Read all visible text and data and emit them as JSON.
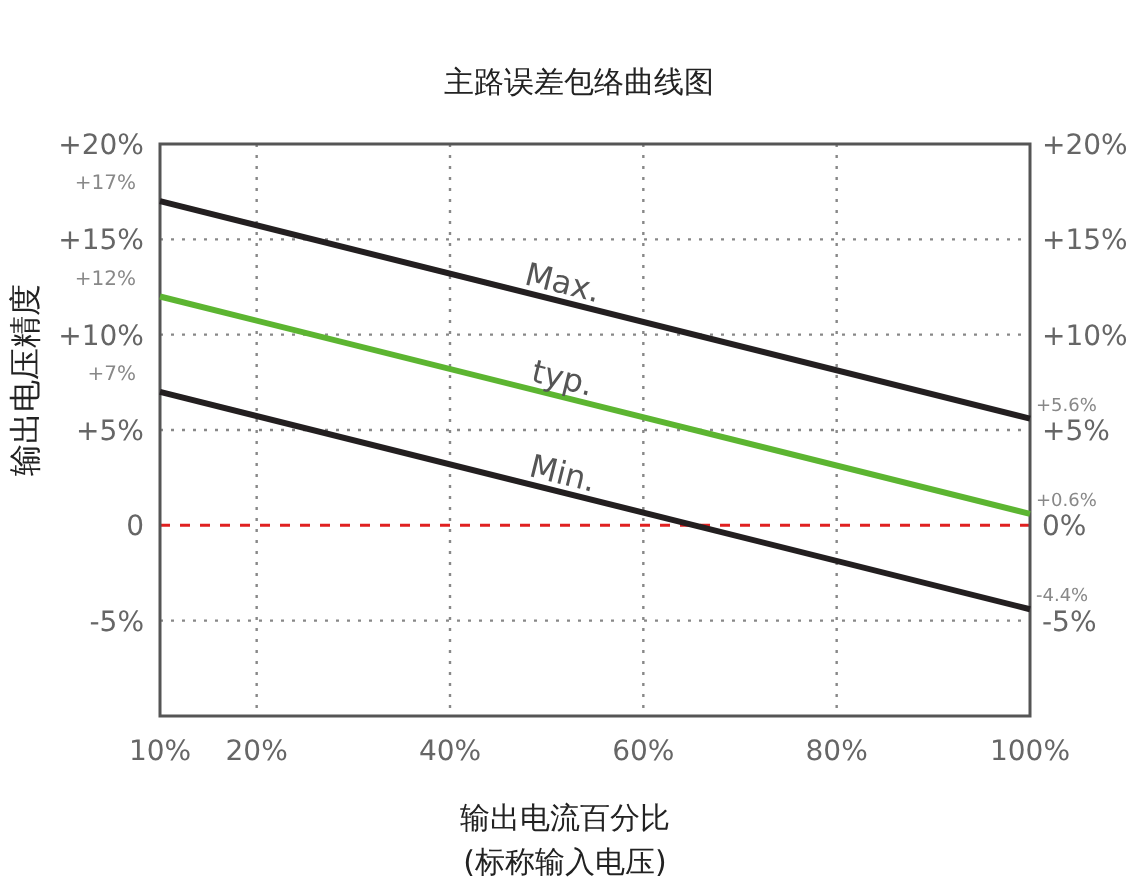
{
  "chart_data": {
    "type": "line",
    "title": "主路误差包络曲线图",
    "xlabel": "输出电流百分比\n(标称输入电压)",
    "ylabel": "输出电压精度",
    "x": [
      10,
      100
    ],
    "series": [
      {
        "name": "Max.",
        "color": "#231f20",
        "values": [
          17,
          5.6
        ],
        "value_labels": [
          "+17%",
          "+5.6%"
        ]
      },
      {
        "name": "typ.",
        "color": "#5cb531",
        "values": [
          12,
          0.6
        ],
        "value_labels": [
          "+12%",
          "+0.6%"
        ]
      },
      {
        "name": "Min.",
        "color": "#231f20",
        "values": [
          7,
          -4.4
        ],
        "value_labels": [
          "+7%",
          "-4.4%"
        ]
      }
    ],
    "xlim": [
      10,
      100
    ],
    "xticks": [
      {
        "value": 10,
        "label": "10%"
      },
      {
        "value": 20,
        "label": "20%"
      },
      {
        "value": 40,
        "label": "40%"
      },
      {
        "value": 60,
        "label": "60%"
      },
      {
        "value": 80,
        "label": "80%"
      },
      {
        "value": 100,
        "label": "100%"
      }
    ],
    "ylim": [
      -10,
      20
    ],
    "yticks": [
      {
        "value": 20,
        "label": "+20%"
      },
      {
        "value": 15,
        "label": "+15%"
      },
      {
        "value": 10,
        "label": "+10%"
      },
      {
        "value": 5,
        "label": "+5%"
      },
      {
        "value": 0,
        "label": "0"
      },
      {
        "value": -5,
        "label": "-5%"
      }
    ],
    "y2lim": [
      -10,
      20
    ],
    "y2ticks": [
      {
        "value": 20,
        "label": "+20%"
      },
      {
        "value": 15,
        "label": "+15%"
      },
      {
        "value": 10,
        "label": "+10%"
      },
      {
        "value": 5,
        "label": "+5%"
      },
      {
        "value": 0,
        "label": "0%"
      },
      {
        "value": -5,
        "label": "-5%"
      }
    ],
    "ref_lines": [
      {
        "axis": "y",
        "value": 0,
        "color": "#e02020",
        "line_style": "dashed"
      }
    ],
    "grid": true,
    "line_style": "solid",
    "marker": "none"
  }
}
